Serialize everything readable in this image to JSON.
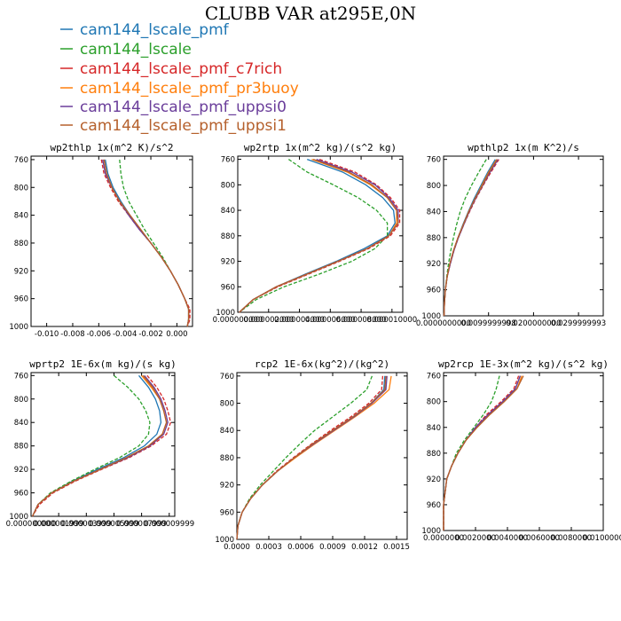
{
  "figure": {
    "title": "CLUBB VAR at295E,0N"
  },
  "legend": {
    "entries": [
      {
        "label": "cam144_lscale_pmf",
        "color": "#1f77b4",
        "dash": "solid"
      },
      {
        "label": "cam144_lscale",
        "color": "#2ca02c",
        "dash": "dashed"
      },
      {
        "label": "cam144_lscale_pmf_c7rich",
        "color": "#d62728",
        "dash": "dashed"
      },
      {
        "label": "cam144_lscale_pmf_pr3buoy",
        "color": "#ff7f0e",
        "dash": "solid"
      },
      {
        "label": "cam144_lscale_pmf_uppsi0",
        "color": "#6a3d9a",
        "dash": "solid"
      },
      {
        "label": "cam144_lscale_pmf_uppsi1",
        "color": "#b5602c",
        "dash": "solid"
      }
    ]
  },
  "chart_data": [
    {
      "type": "line",
      "title": "wp2thlp  1x(m^2 K)/s^2",
      "xlim": [
        -0.0112,
        0.0012
      ],
      "ylim": [
        1000,
        755
      ],
      "xticks": [
        -0.01,
        -0.008,
        -0.006,
        -0.004,
        -0.002,
        0.0
      ],
      "xtick_labels": [
        "-0.010",
        "-0.008",
        "-0.006",
        "-0.004",
        "-0.002",
        "0.000"
      ],
      "yticks": [
        760,
        800,
        840,
        880,
        920,
        960,
        1000
      ],
      "y": [
        760,
        780,
        800,
        820,
        840,
        860,
        880,
        900,
        920,
        940,
        960,
        975,
        990,
        1000
      ],
      "series": [
        {
          "name": "cam144_lscale_pmf",
          "x": [
            -0.0055,
            -0.0053,
            -0.0049,
            -0.0043,
            -0.0036,
            -0.0028,
            -0.002,
            -0.0012,
            -0.0005,
            0.0001,
            0.0006,
            0.0009,
            0.0009,
            0.0008
          ]
        },
        {
          "name": "cam144_lscale",
          "x": [
            -0.0044,
            -0.0043,
            -0.0041,
            -0.0037,
            -0.0031,
            -0.0025,
            -0.0018,
            -0.0011,
            -0.0005,
            0.0001,
            0.0006,
            0.0009,
            0.0009,
            0.0008
          ]
        },
        {
          "name": "cam144_lscale_pmf_c7rich",
          "x": [
            -0.0058,
            -0.0056,
            -0.0051,
            -0.0045,
            -0.0037,
            -0.0029,
            -0.002,
            -0.0012,
            -0.0005,
            0.0001,
            0.0006,
            0.001,
            0.001,
            0.0008
          ]
        },
        {
          "name": "cam144_lscale_pmf_pr3buoy",
          "x": [
            -0.0056,
            -0.0054,
            -0.005,
            -0.0044,
            -0.0036,
            -0.0028,
            -0.002,
            -0.0012,
            -0.0005,
            0.0001,
            0.0006,
            0.0009,
            0.0009,
            0.0008
          ]
        },
        {
          "name": "cam144_lscale_pmf_uppsi0",
          "x": [
            -0.0057,
            -0.0055,
            -0.005,
            -0.0044,
            -0.0037,
            -0.0029,
            -0.002,
            -0.0012,
            -0.0005,
            0.0001,
            0.0006,
            0.0009,
            0.0009,
            0.0008
          ]
        },
        {
          "name": "cam144_lscale_pmf_uppsi1",
          "x": [
            -0.0056,
            -0.0054,
            -0.005,
            -0.0044,
            -0.0036,
            -0.0028,
            -0.002,
            -0.0012,
            -0.0005,
            0.0001,
            0.0006,
            0.0009,
            0.0009,
            0.0008
          ]
        }
      ]
    },
    {
      "type": "line",
      "title": "wp2rtp  1x(m^2 kg)/(s^2 kg)",
      "xlim": [
        0,
        1.07e-05
      ],
      "ylim": [
        1000,
        755
      ],
      "xticks": [
        0,
        2e-06,
        4e-06,
        6e-06,
        8e-06,
        1e-05
      ],
      "xtick_labels": [
        "0.000000000",
        "0.000002000",
        "0.000004000",
        "0.000006000",
        "0.000008000",
        "0.000010000"
      ],
      "yticks": [
        760,
        800,
        840,
        880,
        920,
        960,
        1000
      ],
      "y": [
        760,
        780,
        800,
        820,
        840,
        860,
        880,
        900,
        920,
        940,
        960,
        980,
        1000
      ],
      "series": [
        {
          "name": "cam144_lscale_pmf",
          "x": [
            4.5e-06,
            6.8e-06,
            8.3e-06,
            9.4e-06,
            1.01e-05,
            1.02e-05,
            9.7e-06,
            8.2e-06,
            6.4e-06,
            4.4e-06,
            2.5e-06,
            1e-06,
            1e-07
          ]
        },
        {
          "name": "cam144_lscale",
          "x": [
            3.3e-06,
            4.5e-06,
            6.2e-06,
            7.8e-06,
            9e-06,
            9.7e-06,
            9.7e-06,
            8.9e-06,
            7.4e-06,
            5.3e-06,
            3e-06,
            1.2e-06,
            1e-07
          ]
        },
        {
          "name": "cam144_lscale_pmf_c7rich",
          "x": [
            5.3e-06,
            7.6e-06,
            9e-06,
            9.9e-06,
            1.05e-05,
            1.05e-05,
            9.9e-06,
            8.5e-06,
            6.6e-06,
            4.6e-06,
            2.6e-06,
            1e-06,
            1e-07
          ]
        },
        {
          "name": "cam144_lscale_pmf_pr3buoy",
          "x": [
            4.8e-06,
            7.1e-06,
            8.6e-06,
            9.7e-06,
            1.03e-05,
            1.03e-05,
            9.8e-06,
            8.4e-06,
            6.5e-06,
            4.5e-06,
            2.5e-06,
            1e-06,
            1e-07
          ]
        },
        {
          "name": "cam144_lscale_pmf_uppsi0",
          "x": [
            5.1e-06,
            7.4e-06,
            8.9e-06,
            9.8e-06,
            1.04e-05,
            1.04e-05,
            9.8e-06,
            8.4e-06,
            6.5e-06,
            4.5e-06,
            2.5e-06,
            1e-06,
            1e-07
          ]
        },
        {
          "name": "cam144_lscale_pmf_uppsi1",
          "x": [
            4.9e-06,
            7.2e-06,
            8.7e-06,
            9.7e-06,
            1.03e-05,
            1.04e-05,
            9.8e-06,
            8.4e-06,
            6.5e-06,
            4.5e-06,
            2.5e-06,
            1e-06,
            1e-07
          ]
        }
      ]
    },
    {
      "type": "line",
      "title": "wpthlp2  1x(m K^2)/s",
      "xlim": [
        0,
        0.0355
      ],
      "ylim": [
        1000,
        755
      ],
      "xticks": [
        0,
        0.0099999998,
        0.02,
        0.0299999993
      ],
      "xtick_labels": [
        "0.0000000000",
        "0.0099999998",
        "0.0200000000",
        "0.0299999993"
      ],
      "yticks": [
        760,
        800,
        840,
        880,
        920,
        960,
        1000
      ],
      "y": [
        760,
        780,
        800,
        820,
        840,
        860,
        880,
        900,
        920,
        940,
        960,
        980,
        1000
      ],
      "series": [
        {
          "name": "cam144_lscale_pmf",
          "x": [
            0.0115,
            0.0098,
            0.0083,
            0.0068,
            0.0055,
            0.0043,
            0.0032,
            0.0022,
            0.0014,
            0.0008,
            0.0004,
            0.0002,
            0.0001
          ]
        },
        {
          "name": "cam144_lscale",
          "x": [
            0.0095,
            0.0078,
            0.0062,
            0.0048,
            0.0037,
            0.0029,
            0.0022,
            0.0016,
            0.0011,
            0.0007,
            0.0004,
            0.0002,
            0.0001
          ]
        },
        {
          "name": "cam144_lscale_pmf_c7rich",
          "x": [
            0.0123,
            0.0105,
            0.0088,
            0.0072,
            0.0058,
            0.0045,
            0.0033,
            0.0023,
            0.0015,
            0.0008,
            0.0004,
            0.0002,
            0.0001
          ]
        },
        {
          "name": "cam144_lscale_pmf_pr3buoy",
          "x": [
            0.0118,
            0.01,
            0.0085,
            0.007,
            0.0056,
            0.0044,
            0.0032,
            0.0022,
            0.0014,
            0.0008,
            0.0004,
            0.0002,
            0.0001
          ]
        },
        {
          "name": "cam144_lscale_pmf_uppsi0",
          "x": [
            0.0121,
            0.0103,
            0.0087,
            0.0071,
            0.0057,
            0.0045,
            0.0033,
            0.0023,
            0.0015,
            0.0008,
            0.0004,
            0.0002,
            0.0001
          ]
        },
        {
          "name": "cam144_lscale_pmf_uppsi1",
          "x": [
            0.0119,
            0.0101,
            0.0086,
            0.007,
            0.0056,
            0.0044,
            0.0032,
            0.0022,
            0.0014,
            0.0008,
            0.0004,
            0.0002,
            0.0001
          ]
        }
      ]
    },
    {
      "type": "line",
      "title": "wprtp2  1E-6x(m kg)/(s kg)",
      "xlim": [
        0,
        1.04e-05
      ],
      "ylim": [
        1000,
        755
      ],
      "xticks": [
        0,
        2e-06,
        4e-06,
        6e-06,
        8e-06,
        1e-05
      ],
      "xtick_labels": [
        "0.000000000",
        "0.000001999",
        "0.000003999",
        "0.000005999",
        "0.000007999",
        "0.000009999"
      ],
      "yticks": [
        760,
        800,
        840,
        880,
        920,
        960,
        1000
      ],
      "y": [
        760,
        780,
        800,
        820,
        840,
        860,
        880,
        900,
        920,
        940,
        960,
        980,
        1000
      ],
      "series": [
        {
          "name": "cam144_lscale_pmf",
          "x": [
            7.8e-06,
            8.5e-06,
            9e-06,
            9.3e-06,
            9.4e-06,
            9.1e-06,
            8.2e-06,
            6.7e-06,
            4.8e-06,
            3e-06,
            1.5e-06,
            5e-07,
            1e-07
          ]
        },
        {
          "name": "cam144_lscale",
          "x": [
            6e-06,
            7e-06,
            7.8e-06,
            8.3e-06,
            8.6e-06,
            8.5e-06,
            7.8e-06,
            6.4e-06,
            4.6e-06,
            2.9e-06,
            1.4e-06,
            5e-07,
            1e-07
          ]
        },
        {
          "name": "cam144_lscale_pmf_c7rich",
          "x": [
            8.4e-06,
            9.1e-06,
            9.6e-06,
            9.9e-06,
            1.01e-05,
            9.8e-06,
            8.7e-06,
            7.1e-06,
            5.1e-06,
            3.2e-06,
            1.6e-06,
            6e-07,
            1e-07
          ]
        },
        {
          "name": "cam144_lscale_pmf_pr3buoy",
          "x": [
            8e-06,
            8.7e-06,
            9.3e-06,
            9.6e-06,
            9.8e-06,
            9.5e-06,
            8.5e-06,
            6.9e-06,
            5e-06,
            3.1e-06,
            1.5e-06,
            5e-07,
            1e-07
          ]
        },
        {
          "name": "cam144_lscale_pmf_uppsi0",
          "x": [
            8.2e-06,
            8.9e-06,
            9.4e-06,
            9.7e-06,
            9.9e-06,
            9.6e-06,
            8.6e-06,
            7e-06,
            5e-06,
            3.1e-06,
            1.5e-06,
            5e-07,
            1e-07
          ]
        },
        {
          "name": "cam144_lscale_pmf_uppsi1",
          "x": [
            8.1e-06,
            8.8e-06,
            9.3e-06,
            9.6e-06,
            9.8e-06,
            9.5e-06,
            8.5e-06,
            6.9e-06,
            5e-06,
            3.1e-06,
            1.5e-06,
            5e-07,
            1e-07
          ]
        }
      ]
    },
    {
      "type": "line",
      "title": "rcp2  1E-6x(kg^2)/(kg^2)",
      "xlim": [
        0,
        0.0016
      ],
      "ylim": [
        1000,
        755
      ],
      "xticks": [
        0,
        0.0003,
        0.0006,
        0.0009,
        0.0012,
        0.0015
      ],
      "xtick_labels": [
        "0.0000",
        "0.0003",
        "0.0006",
        "0.0009",
        "0.0012",
        "0.0015"
      ],
      "yticks": [
        760,
        800,
        840,
        880,
        920,
        960,
        1000
      ],
      "y": [
        760,
        780,
        800,
        820,
        840,
        860,
        880,
        900,
        920,
        940,
        960,
        980,
        1000
      ],
      "series": [
        {
          "name": "cam144_lscale_pmf",
          "x": [
            0.00139,
            0.00138,
            0.00126,
            0.00109,
            0.0009,
            0.00071,
            0.00054,
            0.00038,
            0.00024,
            0.00013,
            5e-05,
            1e-05,
            0
          ]
        },
        {
          "name": "cam144_lscale",
          "x": [
            0.00127,
            0.00122,
            0.00107,
            0.0009,
            0.00073,
            0.00059,
            0.00046,
            0.00034,
            0.00022,
            0.00012,
            5e-05,
            1e-05,
            0
          ]
        },
        {
          "name": "cam144_lscale_pmf_c7rich",
          "x": [
            0.00137,
            0.00136,
            0.00124,
            0.00107,
            0.00088,
            0.0007,
            0.00053,
            0.00037,
            0.00024,
            0.00013,
            5e-05,
            1e-05,
            0
          ]
        },
        {
          "name": "cam144_lscale_pmf_pr3buoy",
          "x": [
            0.00145,
            0.00143,
            0.00129,
            0.00111,
            0.00092,
            0.00073,
            0.00055,
            0.00038,
            0.00024,
            0.00013,
            5e-05,
            1e-05,
            0
          ]
        },
        {
          "name": "cam144_lscale_pmf_uppsi0",
          "x": [
            0.00141,
            0.0014,
            0.00127,
            0.0011,
            0.00091,
            0.00072,
            0.00054,
            0.00038,
            0.00024,
            0.00013,
            5e-05,
            1e-05,
            0
          ]
        },
        {
          "name": "cam144_lscale_pmf_uppsi1",
          "x": [
            0.0014,
            0.00139,
            0.00126,
            0.00109,
            0.0009,
            0.00071,
            0.00054,
            0.00038,
            0.00024,
            0.00013,
            5e-05,
            1e-05,
            0
          ]
        }
      ]
    },
    {
      "type": "line",
      "title": "wp2rcp  1E-3x(m^2 kg)/(s^2 kg)",
      "xlim": [
        0,
        0.01
      ],
      "ylim": [
        1000,
        755
      ],
      "xticks": [
        0,
        0.002,
        0.004,
        0.006,
        0.008,
        0.01
      ],
      "xtick_labels": [
        "0.0000000",
        "0.0020000",
        "0.0040000",
        "0.0060000",
        "0.0080000",
        "0.0100000"
      ],
      "yticks": [
        760,
        800,
        840,
        880,
        920,
        960,
        1000
      ],
      "y": [
        760,
        780,
        800,
        820,
        840,
        860,
        880,
        900,
        920,
        940,
        960,
        980,
        1000
      ],
      "series": [
        {
          "name": "cam144_lscale_pmf",
          "x": [
            0.0048,
            0.0045,
            0.0037,
            0.0028,
            0.002,
            0.0014,
            0.0009,
            0.0005,
            0.0002,
            0.0001,
            0,
            0,
            0
          ]
        },
        {
          "name": "cam144_lscale",
          "x": [
            0.0035,
            0.0033,
            0.003,
            0.0025,
            0.0019,
            0.0013,
            0.0008,
            0.0005,
            0.0002,
            0.0001,
            0,
            0,
            0
          ]
        },
        {
          "name": "cam144_lscale_pmf_c7rich",
          "x": [
            0.0047,
            0.0044,
            0.0036,
            0.0027,
            0.002,
            0.0014,
            0.0009,
            0.0005,
            0.0002,
            0.0001,
            0,
            0,
            0
          ]
        },
        {
          "name": "cam144_lscale_pmf_pr3buoy",
          "x": [
            0.0049,
            0.0046,
            0.0038,
            0.0029,
            0.0021,
            0.0014,
            0.0009,
            0.0005,
            0.0002,
            0.0001,
            0,
            0,
            0
          ]
        },
        {
          "name": "cam144_lscale_pmf_uppsi0",
          "x": [
            0.0048,
            0.0045,
            0.0037,
            0.0028,
            0.002,
            0.0014,
            0.0009,
            0.0005,
            0.0002,
            0.0001,
            0,
            0,
            0
          ]
        },
        {
          "name": "cam144_lscale_pmf_uppsi1",
          "x": [
            0.005,
            0.0046,
            0.0038,
            0.0029,
            0.0021,
            0.0014,
            0.0009,
            0.0005,
            0.0002,
            0.0001,
            0,
            0,
            0
          ]
        }
      ]
    }
  ]
}
